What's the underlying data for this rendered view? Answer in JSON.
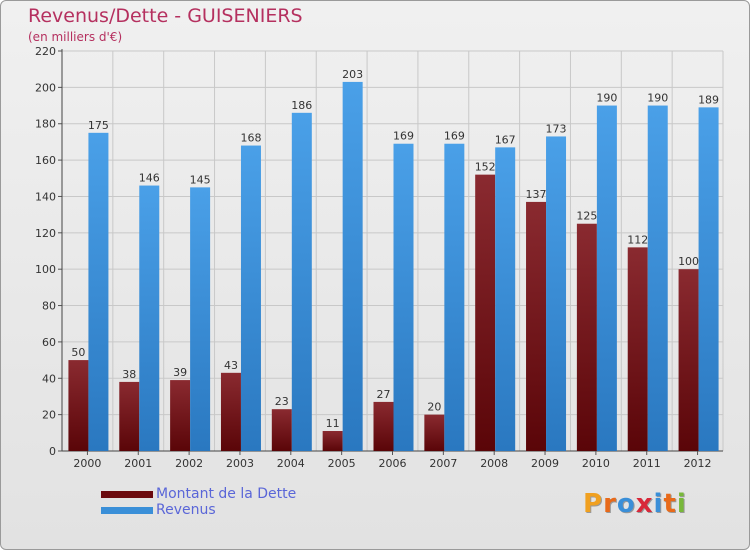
{
  "title": "Revenus/Dette - GUISENIERS",
  "subtitle": "(en milliers d'€)",
  "logo_text": "Proxiti",
  "colors": {
    "dette": "#7a0f14",
    "revenus": "#3a8fd8",
    "title": "#b5305f",
    "legend_text": "#5a66d8"
  },
  "legend": [
    {
      "label": "Montant de la Dette",
      "color": "#6b0a0e"
    },
    {
      "label": "Revenus",
      "color": "#3a8fd8"
    }
  ],
  "chart_data": {
    "type": "bar",
    "categories": [
      "2000",
      "2001",
      "2002",
      "2003",
      "2004",
      "2005",
      "2006",
      "2007",
      "2008",
      "2009",
      "2010",
      "2011",
      "2012"
    ],
    "series": [
      {
        "name": "Montant de la Dette",
        "values": [
          50,
          38,
          39,
          43,
          23,
          11,
          27,
          20,
          152,
          137,
          125,
          112,
          100
        ]
      },
      {
        "name": "Revenus",
        "values": [
          175,
          146,
          145,
          168,
          186,
          203,
          169,
          169,
          167,
          173,
          190,
          190,
          189
        ]
      }
    ],
    "ylim": [
      0,
      220
    ],
    "yticks": [
      0,
      20,
      40,
      60,
      80,
      100,
      120,
      140,
      160,
      180,
      200,
      220
    ],
    "grid": true,
    "legend_position": "bottom-left"
  }
}
